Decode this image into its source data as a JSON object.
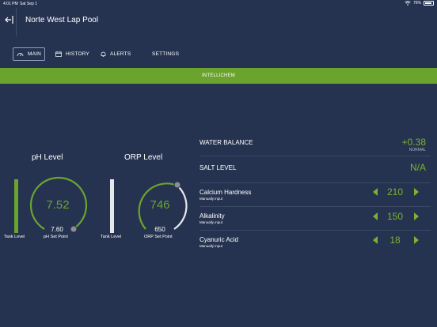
{
  "status_bar": {
    "time": "4:01 PM",
    "date": "Sat Sep 1",
    "battery": "76%"
  },
  "header": {
    "title": "Norte West Lap Pool"
  },
  "tabs": [
    {
      "label": "MAIN",
      "icon": "gauge-icon",
      "active": true
    },
    {
      "label": "HISTORY",
      "icon": "calendar-icon",
      "active": false
    },
    {
      "label": "ALERTS",
      "icon": "bell-icon",
      "active": false
    },
    {
      "label": "SETTINGS",
      "icon": "",
      "active": false
    }
  ],
  "banner": {
    "label": "INTELLICHEM"
  },
  "ph": {
    "title": "pH Level",
    "value": "7.52",
    "setpoint": "7.60",
    "tank_label": "Tank Level",
    "setpoint_label": "pH Set Point",
    "tank_level": 1.0,
    "color": "#6aa42d"
  },
  "orp": {
    "title": "ORP Level",
    "value": "746",
    "setpoint": "650",
    "tank_label": "Tank Level",
    "setpoint_label": "ORP Set Point",
    "tank_level": 1.0,
    "color": "#6aa42d"
  },
  "water_balance": {
    "label": "WATER BALANCE",
    "value": "+0.38",
    "status": "NORMAL"
  },
  "salt_level": {
    "label": "SALT LEVEL",
    "value": "N/A"
  },
  "inputs": [
    {
      "label": "Calcium Hardness",
      "sub": "Manually input",
      "value": "210"
    },
    {
      "label": "Alkalinity",
      "sub": "Manually input",
      "value": "150"
    },
    {
      "label": "Cyanuric Acid",
      "sub": "Manually input",
      "value": "18"
    }
  ],
  "colors": {
    "background": "#263350",
    "accent": "#6aa42d",
    "value_green": "#7ab32e"
  }
}
